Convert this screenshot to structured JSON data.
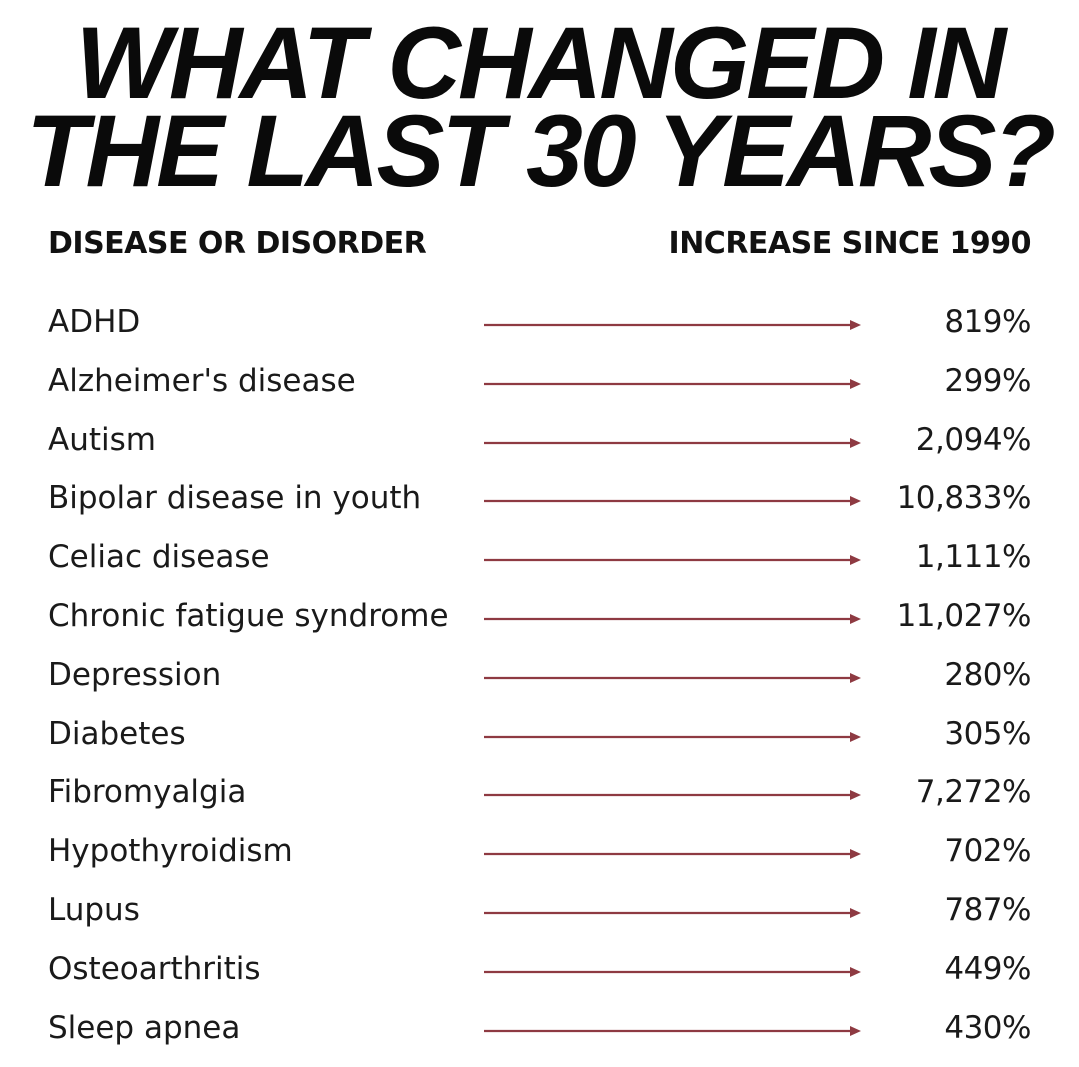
{
  "title": {
    "line1": "WHAT CHANGED IN",
    "line2": "THE LAST 30 YEARS?"
  },
  "columns": {
    "left": "DISEASE OR DISORDER",
    "right": "INCREASE SINCE 1990"
  },
  "arrow_color": "#8e3a42",
  "rows": [
    {
      "disease": "ADHD",
      "increase": "819%"
    },
    {
      "disease": "Alzheimer's disease",
      "increase": "299%"
    },
    {
      "disease": "Autism",
      "increase": "2,094%"
    },
    {
      "disease": "Bipolar disease in youth",
      "increase": "10,833%"
    },
    {
      "disease": "Celiac disease",
      "increase": "1,111%"
    },
    {
      "disease": "Chronic fatigue syndrome",
      "increase": "11,027%"
    },
    {
      "disease": "Depression",
      "increase": "280%"
    },
    {
      "disease": "Diabetes",
      "increase": "305%"
    },
    {
      "disease": "Fibromyalgia",
      "increase": "7,272%"
    },
    {
      "disease": "Hypothyroidism",
      "increase": "702%"
    },
    {
      "disease": "Lupus",
      "increase": "787%"
    },
    {
      "disease": "Osteoarthritis",
      "increase": "449%"
    },
    {
      "disease": "Sleep apnea",
      "increase": "430%"
    }
  ]
}
